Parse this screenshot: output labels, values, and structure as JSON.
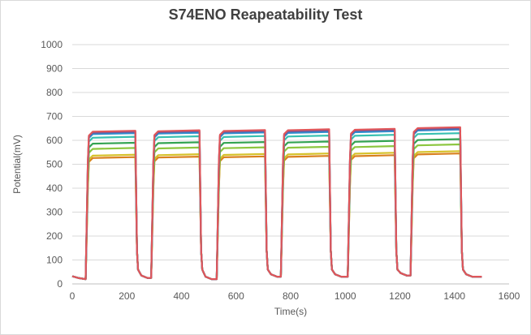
{
  "chart_data": {
    "type": "line",
    "title": "S74ENO Reapeatability Test",
    "xlabel": "Time(s)",
    "ylabel": "Potential(mV)",
    "xlim": [
      0,
      1600
    ],
    "ylim": [
      0,
      1000
    ],
    "x_ticks": [
      0,
      200,
      400,
      600,
      800,
      1000,
      1200,
      1400,
      1600
    ],
    "y_ticks": [
      0,
      100,
      200,
      300,
      400,
      500,
      600,
      700,
      800,
      900,
      1000
    ],
    "grid": "horizontal",
    "legend": "none",
    "colors": [
      "#e0565a",
      "#6a5a9e",
      "#2f8fcf",
      "#36c0b0",
      "#33a352",
      "#8cc63f",
      "#d6c12a",
      "#d9801f"
    ],
    "pulse_windows": [
      [
        55,
        235
      ],
      [
        295,
        470
      ],
      [
        535,
        710
      ],
      [
        770,
        945
      ],
      [
        1015,
        1185
      ],
      [
        1245,
        1425
      ]
    ],
    "baseline_end_x": 1500,
    "series": [
      {
        "plateaus": [
          640,
          642,
          643,
          646,
          648,
          655
        ],
        "baselines": [
          20,
          25,
          20,
          30,
          30,
          35,
          30
        ]
      },
      {
        "plateaus": [
          636,
          638,
          639,
          641,
          644,
          650
        ],
        "baselines": [
          20,
          25,
          20,
          30,
          30,
          35,
          30
        ]
      },
      {
        "plateaus": [
          630,
          632,
          633,
          635,
          638,
          645
        ],
        "baselines": [
          20,
          25,
          20,
          30,
          30,
          35,
          30
        ]
      },
      {
        "plateaus": [
          615,
          617,
          618,
          620,
          623,
          630
        ],
        "baselines": [
          20,
          25,
          20,
          30,
          30,
          35,
          30
        ]
      },
      {
        "plateaus": [
          590,
          592,
          593,
          595,
          598,
          605
        ],
        "baselines": [
          20,
          25,
          20,
          30,
          30,
          35,
          30
        ]
      },
      {
        "plateaus": [
          568,
          570,
          571,
          573,
          576,
          583
        ],
        "baselines": [
          20,
          25,
          20,
          30,
          30,
          35,
          30
        ]
      },
      {
        "plateaus": [
          540,
          542,
          543,
          545,
          548,
          555
        ],
        "baselines": [
          20,
          25,
          20,
          30,
          30,
          35,
          30
        ]
      },
      {
        "plateaus": [
          530,
          532,
          533,
          535,
          538,
          545
        ],
        "baselines": [
          20,
          25,
          20,
          30,
          30,
          35,
          30
        ]
      }
    ]
  }
}
